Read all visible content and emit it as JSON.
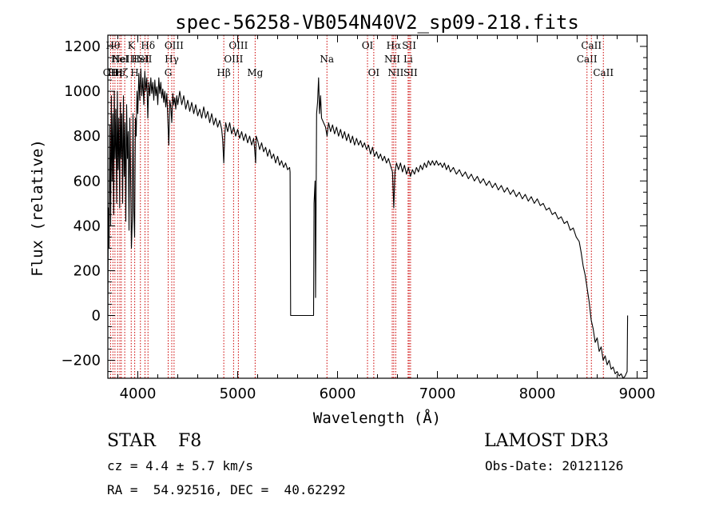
{
  "chart_data": {
    "type": "line",
    "title": "spec-56258-VB054N40V2_sp09-218.fits",
    "xlabel": "Wavelength (Å)",
    "ylabel": "Flux (relative)",
    "xlim": [
      3700,
      9100
    ],
    "ylim": [
      -280,
      1250
    ],
    "xticks": [
      4000,
      5000,
      6000,
      7000,
      8000,
      9000
    ],
    "yticks": [
      -200,
      0,
      200,
      400,
      600,
      800,
      1000,
      1200
    ],
    "grid": false,
    "line_color": "#000000",
    "marker_color": "#cc0000",
    "spectrum": {
      "name": "flux",
      "points": [
        [
          3700,
          0
        ],
        [
          3705,
          480
        ],
        [
          3712,
          300
        ],
        [
          3720,
          850
        ],
        [
          3728,
          400
        ],
        [
          3735,
          980
        ],
        [
          3742,
          600
        ],
        [
          3750,
          900
        ],
        [
          3758,
          450
        ],
        [
          3765,
          1000
        ],
        [
          3772,
          700
        ],
        [
          3780,
          920
        ],
        [
          3788,
          500
        ],
        [
          3795,
          1000
        ],
        [
          3802,
          650
        ],
        [
          3810,
          880
        ],
        [
          3818,
          480
        ],
        [
          3825,
          950
        ],
        [
          3832,
          700
        ],
        [
          3840,
          900
        ],
        [
          3848,
          500
        ],
        [
          3856,
          980
        ],
        [
          3864,
          620
        ],
        [
          3872,
          860
        ],
        [
          3880,
          420
        ],
        [
          3888,
          940
        ],
        [
          3896,
          700
        ],
        [
          3904,
          820
        ],
        [
          3912,
          380
        ],
        [
          3920,
          880
        ],
        [
          3928,
          620
        ],
        [
          3936,
          300
        ],
        [
          3944,
          420
        ],
        [
          3952,
          900
        ],
        [
          3960,
          460
        ],
        [
          3968,
          350
        ],
        [
          3976,
          880
        ],
        [
          3984,
          800
        ],
        [
          3992,
          1000
        ],
        [
          4000,
          900
        ],
        [
          4010,
          1080
        ],
        [
          4020,
          960
        ],
        [
          4030,
          1100
        ],
        [
          4040,
          980
        ],
        [
          4050,
          1060
        ],
        [
          4060,
          940
        ],
        [
          4070,
          1090
        ],
        [
          4080,
          1000
        ],
        [
          4090,
          1060
        ],
        [
          4100,
          880
        ],
        [
          4110,
          1040
        ],
        [
          4120,
          980
        ],
        [
          4130,
          1060
        ],
        [
          4140,
          990
        ],
        [
          4150,
          1040
        ],
        [
          4160,
          960
        ],
        [
          4170,
          1050
        ],
        [
          4180,
          980
        ],
        [
          4190,
          1020
        ],
        [
          4200,
          940
        ],
        [
          4210,
          1060
        ],
        [
          4220,
          990
        ],
        [
          4230,
          1040
        ],
        [
          4240,
          970
        ],
        [
          4250,
          1010
        ],
        [
          4260,
          950
        ],
        [
          4270,
          1000
        ],
        [
          4280,
          930
        ],
        [
          4290,
          990
        ],
        [
          4300,
          880
        ],
        [
          4310,
          760
        ],
        [
          4320,
          960
        ],
        [
          4330,
          930
        ],
        [
          4340,
          860
        ],
        [
          4350,
          990
        ],
        [
          4360,
          940
        ],
        [
          4370,
          970
        ],
        [
          4380,
          920
        ],
        [
          4390,
          980
        ],
        [
          4400,
          940
        ],
        [
          4420,
          1000
        ],
        [
          4440,
          940
        ],
        [
          4460,
          980
        ],
        [
          4480,
          920
        ],
        [
          4500,
          960
        ],
        [
          4520,
          910
        ],
        [
          4540,
          950
        ],
        [
          4560,
          900
        ],
        [
          4580,
          940
        ],
        [
          4600,
          890
        ],
        [
          4620,
          920
        ],
        [
          4640,
          880
        ],
        [
          4660,
          930
        ],
        [
          4680,
          880
        ],
        [
          4700,
          910
        ],
        [
          4720,
          860
        ],
        [
          4740,
          900
        ],
        [
          4760,
          850
        ],
        [
          4780,
          880
        ],
        [
          4800,
          840
        ],
        [
          4820,
          870
        ],
        [
          4840,
          830
        ],
        [
          4850,
          780
        ],
        [
          4861,
          680
        ],
        [
          4870,
          800
        ],
        [
          4880,
          860
        ],
        [
          4900,
          820
        ],
        [
          4920,
          860
        ],
        [
          4940,
          810
        ],
        [
          4960,
          840
        ],
        [
          4980,
          800
        ],
        [
          5000,
          830
        ],
        [
          5020,
          790
        ],
        [
          5040,
          820
        ],
        [
          5060,
          780
        ],
        [
          5080,
          810
        ],
        [
          5100,
          770
        ],
        [
          5120,
          800
        ],
        [
          5140,
          760
        ],
        [
          5160,
          790
        ],
        [
          5170,
          740
        ],
        [
          5180,
          680
        ],
        [
          5185,
          800
        ],
        [
          5200,
          780
        ],
        [
          5220,
          740
        ],
        [
          5240,
          770
        ],
        [
          5260,
          730
        ],
        [
          5280,
          750
        ],
        [
          5300,
          710
        ],
        [
          5320,
          740
        ],
        [
          5340,
          700
        ],
        [
          5360,
          720
        ],
        [
          5380,
          680
        ],
        [
          5400,
          710
        ],
        [
          5420,
          670
        ],
        [
          5440,
          690
        ],
        [
          5460,
          660
        ],
        [
          5480,
          680
        ],
        [
          5500,
          650
        ],
        [
          5520,
          660
        ],
        [
          5525,
          640
        ],
        [
          5530,
          0
        ],
        [
          5760,
          0
        ],
        [
          5765,
          500
        ],
        [
          5775,
          600
        ],
        [
          5780,
          80
        ],
        [
          5790,
          900
        ],
        [
          5800,
          950
        ],
        [
          5810,
          1060
        ],
        [
          5820,
          900
        ],
        [
          5830,
          980
        ],
        [
          5840,
          880
        ],
        [
          5860,
          860
        ],
        [
          5880,
          840
        ],
        [
          5895,
          800
        ],
        [
          5910,
          860
        ],
        [
          5930,
          820
        ],
        [
          5950,
          850
        ],
        [
          5970,
          810
        ],
        [
          5990,
          840
        ],
        [
          6010,
          800
        ],
        [
          6030,
          830
        ],
        [
          6050,
          790
        ],
        [
          6070,
          820
        ],
        [
          6090,
          780
        ],
        [
          6110,
          810
        ],
        [
          6130,
          770
        ],
        [
          6150,
          800
        ],
        [
          6170,
          760
        ],
        [
          6190,
          790
        ],
        [
          6210,
          760
        ],
        [
          6230,
          780
        ],
        [
          6250,
          750
        ],
        [
          6270,
          770
        ],
        [
          6290,
          740
        ],
        [
          6310,
          760
        ],
        [
          6330,
          720
        ],
        [
          6350,
          750
        ],
        [
          6370,
          710
        ],
        [
          6390,
          730
        ],
        [
          6410,
          700
        ],
        [
          6430,
          720
        ],
        [
          6450,
          690
        ],
        [
          6470,
          710
        ],
        [
          6490,
          680
        ],
        [
          6510,
          700
        ],
        [
          6530,
          670
        ],
        [
          6550,
          640
        ],
        [
          6563,
          480
        ],
        [
          6575,
          640
        ],
        [
          6590,
          680
        ],
        [
          6610,
          650
        ],
        [
          6630,
          680
        ],
        [
          6650,
          640
        ],
        [
          6670,
          670
        ],
        [
          6690,
          630
        ],
        [
          6710,
          660
        ],
        [
          6730,
          620
        ],
        [
          6750,
          650
        ],
        [
          6770,
          630
        ],
        [
          6790,
          660
        ],
        [
          6810,
          640
        ],
        [
          6830,
          670
        ],
        [
          6850,
          650
        ],
        [
          6870,
          680
        ],
        [
          6890,
          660
        ],
        [
          6910,
          690
        ],
        [
          6930,
          670
        ],
        [
          6950,
          690
        ],
        [
          6970,
          670
        ],
        [
          6990,
          690
        ],
        [
          7010,
          670
        ],
        [
          7030,
          680
        ],
        [
          7050,
          660
        ],
        [
          7070,
          680
        ],
        [
          7090,
          650
        ],
        [
          7110,
          670
        ],
        [
          7130,
          640
        ],
        [
          7160,
          660
        ],
        [
          7190,
          630
        ],
        [
          7220,
          650
        ],
        [
          7250,
          620
        ],
        [
          7280,
          640
        ],
        [
          7310,
          610
        ],
        [
          7340,
          630
        ],
        [
          7370,
          600
        ],
        [
          7400,
          620
        ],
        [
          7430,
          590
        ],
        [
          7460,
          610
        ],
        [
          7490,
          580
        ],
        [
          7520,
          600
        ],
        [
          7550,
          570
        ],
        [
          7580,
          590
        ],
        [
          7610,
          560
        ],
        [
          7640,
          580
        ],
        [
          7670,
          550
        ],
        [
          7700,
          570
        ],
        [
          7730,
          540
        ],
        [
          7760,
          560
        ],
        [
          7790,
          530
        ],
        [
          7820,
          550
        ],
        [
          7850,
          520
        ],
        [
          7880,
          540
        ],
        [
          7910,
          510
        ],
        [
          7940,
          530
        ],
        [
          7970,
          500
        ],
        [
          8000,
          520
        ],
        [
          8030,
          490
        ],
        [
          8060,
          500
        ],
        [
          8090,
          470
        ],
        [
          8120,
          480
        ],
        [
          8150,
          450
        ],
        [
          8180,
          460
        ],
        [
          8210,
          430
        ],
        [
          8240,
          440
        ],
        [
          8270,
          410
        ],
        [
          8300,
          420
        ],
        [
          8330,
          380
        ],
        [
          8360,
          390
        ],
        [
          8390,
          350
        ],
        [
          8420,
          330
        ],
        [
          8440,
          280
        ],
        [
          8460,
          220
        ],
        [
          8480,
          180
        ],
        [
          8500,
          120
        ],
        [
          8520,
          60
        ],
        [
          8540,
          -20
        ],
        [
          8560,
          -60
        ],
        [
          8580,
          -120
        ],
        [
          8600,
          -100
        ],
        [
          8620,
          -160
        ],
        [
          8640,
          -140
        ],
        [
          8660,
          -200
        ],
        [
          8680,
          -180
        ],
        [
          8700,
          -220
        ],
        [
          8720,
          -200
        ],
        [
          8740,
          -240
        ],
        [
          8760,
          -230
        ],
        [
          8780,
          -260
        ],
        [
          8800,
          -250
        ],
        [
          8820,
          -270
        ],
        [
          8840,
          -260
        ],
        [
          8860,
          -280
        ],
        [
          8880,
          -270
        ],
        [
          8900,
          -250
        ],
        [
          8905,
          0
        ]
      ]
    },
    "line_markers": [
      {
        "wl": 3727,
        "label": "OII",
        "row": 2
      },
      {
        "wl": 3751,
        "label": "Hθ",
        "row": 0
      },
      {
        "wl": 3771,
        "label": "Hη",
        "row": 2
      },
      {
        "wl": 3798,
        "label": "Hε",
        "row": 2
      },
      {
        "wl": 3820,
        "label": "HeI",
        "row": 1
      },
      {
        "wl": 3835,
        "label": "Hζ",
        "row": 2
      },
      {
        "wl": 3869,
        "label": "NeIII",
        "row": 1
      },
      {
        "wl": 3934,
        "label": "K",
        "row": 0
      },
      {
        "wl": 3969,
        "label": "H",
        "row": 2
      },
      {
        "wl": 4026,
        "label": "HeI",
        "row": 1
      },
      {
        "wl": 4072,
        "label": "SII",
        "row": 1
      },
      {
        "wl": 4102,
        "label": "Hδ",
        "row": 0
      },
      {
        "wl": 4304,
        "label": "G",
        "row": 2
      },
      {
        "wl": 4340,
        "label": "Hγ",
        "row": 1
      },
      {
        "wl": 4363,
        "label": "OIII",
        "row": 0
      },
      {
        "wl": 4861,
        "label": "Hβ",
        "row": 2
      },
      {
        "wl": 4959,
        "label": "OIII",
        "row": 1
      },
      {
        "wl": 5007,
        "label": "OIII",
        "row": 0
      },
      {
        "wl": 5175,
        "label": "Mg",
        "row": 2
      },
      {
        "wl": 5894,
        "label": "Na",
        "row": 1
      },
      {
        "wl": 6300,
        "label": "OI",
        "row": 0
      },
      {
        "wl": 6363,
        "label": "OI",
        "row": 2
      },
      {
        "wl": 6548,
        "label": "NII",
        "row": 1
      },
      {
        "wl": 6563,
        "label": "Hα",
        "row": 0
      },
      {
        "wl": 6583,
        "label": "NII",
        "row": 2
      },
      {
        "wl": 6707,
        "label": "Li",
        "row": 1
      },
      {
        "wl": 6717,
        "label": "SII",
        "row": 0
      },
      {
        "wl": 6731,
        "label": "SII",
        "row": 2
      },
      {
        "wl": 8498,
        "label": "CaII",
        "row": 1
      },
      {
        "wl": 8542,
        "label": "CaII",
        "row": 0
      },
      {
        "wl": 8662,
        "label": "CaII",
        "row": 2
      }
    ]
  },
  "info": {
    "class_text": "STAR    F8",
    "survey": "LAMOST DR3",
    "cz": "cz = 4.4 ± 5.7 km/s",
    "obs_date": "Obs-Date: 20121126",
    "coords": "RA =  54.92516, DEC =  40.62292"
  }
}
